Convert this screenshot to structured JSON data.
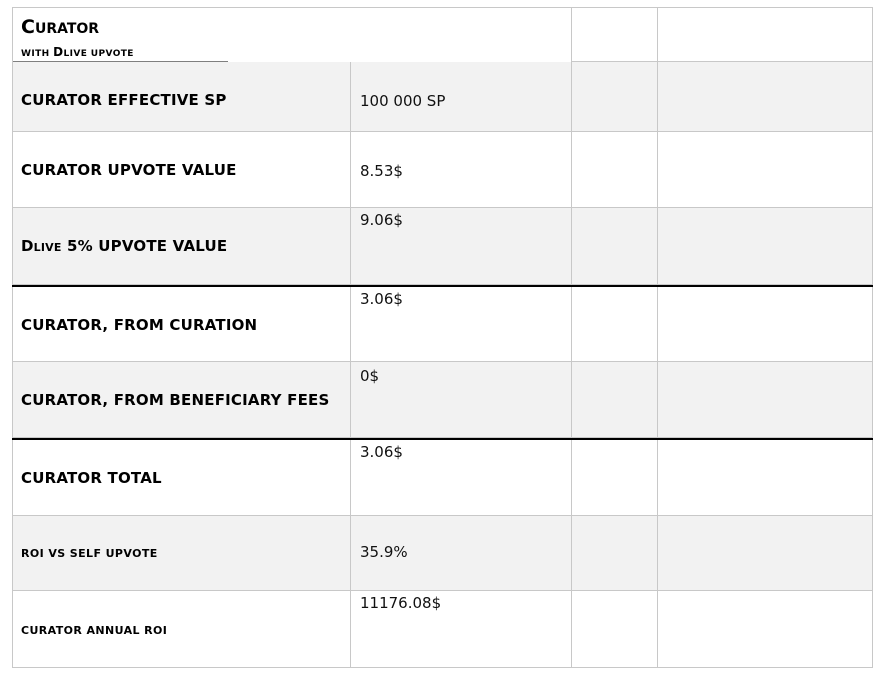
{
  "header": {
    "title_initial": "C",
    "title_rest": "URATOR",
    "subtitle_a": "WITH ",
    "subtitle_b_initial": "D",
    "subtitle_b_rest": "LIVE UPVOTE"
  },
  "rows": [
    {
      "label": "CURATOR EFFECTIVE SP",
      "value": "100 000 SP"
    },
    {
      "label": "CURATOR UPVOTE VALUE",
      "value": "8.53$"
    },
    {
      "label_initial": "D",
      "label_small": "LIVE",
      "label_rest": " 5% UPVOTE VALUE",
      "value": "9.06$"
    },
    {
      "label": "CURATOR, FROM CURATION",
      "value": "3.06$"
    },
    {
      "label": "CURATOR, FROM BENEFICIARY FEES",
      "value": "0$"
    },
    {
      "label": "CURATOR TOTAL",
      "value": "3.06$"
    },
    {
      "label": "ROI VS SELF UPVOTE",
      "value": "35.9%"
    },
    {
      "label": "CURATOR ANNUAL ROI",
      "value": "11176.08$"
    }
  ]
}
